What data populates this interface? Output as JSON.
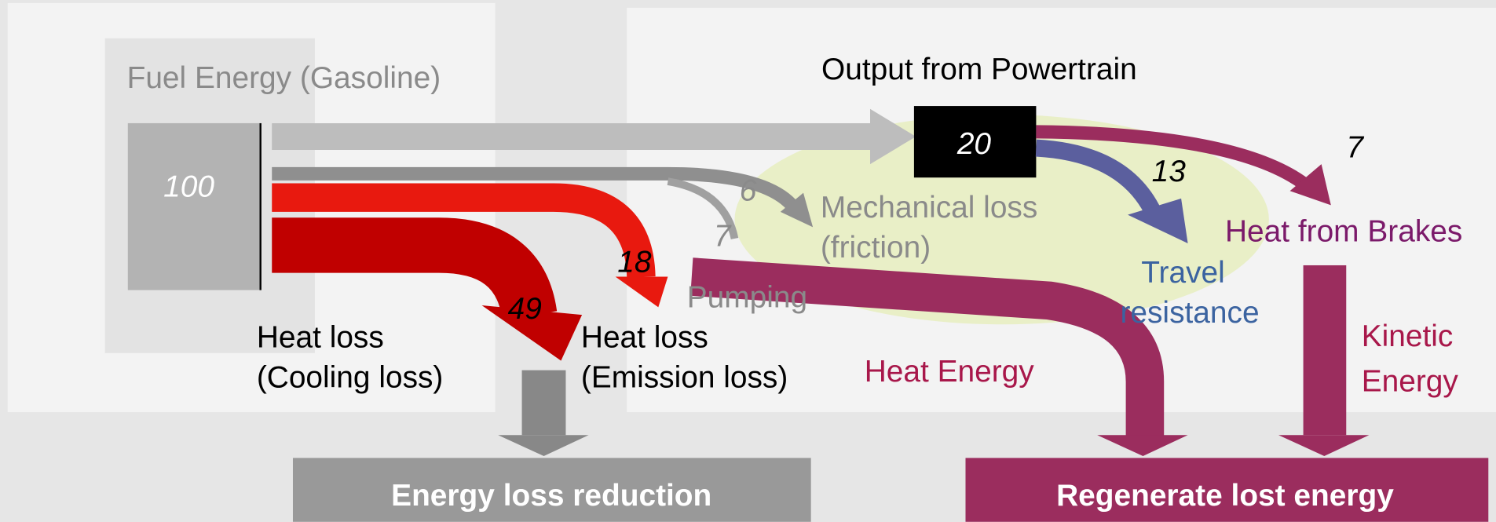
{
  "source": {
    "label": "Fuel Energy (Gasoline)",
    "value": 100
  },
  "output": {
    "label": "Output from Powertrain",
    "value": 20
  },
  "losses": [
    {
      "value": 49,
      "label_lines": [
        "Heat loss",
        "(Cooling loss)"
      ]
    },
    {
      "value": 18,
      "label_lines": [
        "Heat loss",
        "(Emission loss)"
      ]
    },
    {
      "value": 7,
      "label_lines": [
        "Pumping"
      ]
    },
    {
      "value": 6,
      "label_lines": [
        "Mechanical loss",
        "(friction)"
      ]
    }
  ],
  "output_split": [
    {
      "value": 13,
      "label_lines": [
        "Travel",
        "resistance"
      ]
    },
    {
      "value": 7,
      "label_lines": [
        "Heat from Brakes"
      ]
    }
  ],
  "energy_labels": {
    "heat": "Heat Energy",
    "kinetic_lines": [
      "Kinetic",
      "Energy"
    ]
  },
  "actions": {
    "reduce": "Energy loss reduction",
    "regenerate": "Regenerate lost energy"
  }
}
